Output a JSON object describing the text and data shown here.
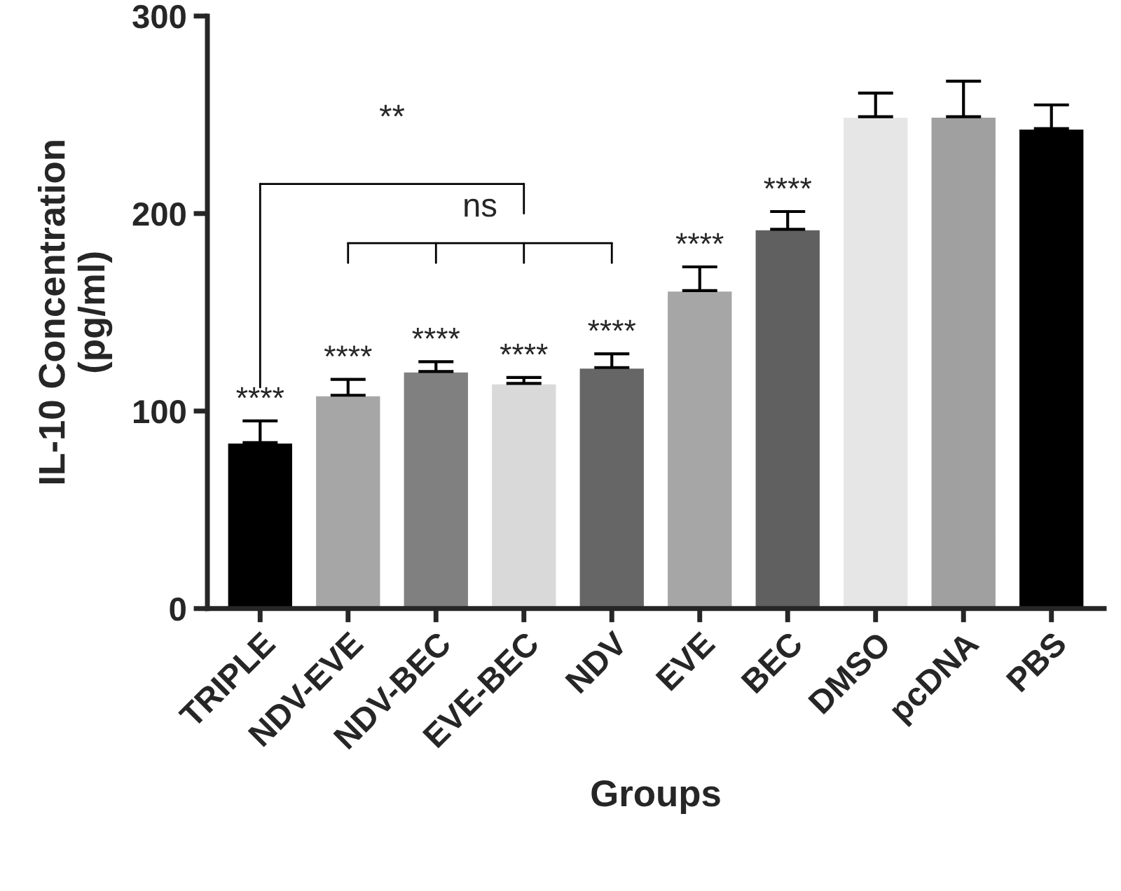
{
  "chart_data": {
    "type": "bar",
    "xlabel": "Groups",
    "ylabel": "IL-10 Concentration\n(pg/ml)",
    "categories": [
      "TRIPLE",
      "NDV-EVE",
      "NDV-BEC",
      "EVE-BEC",
      "NDV",
      "EVE",
      "BEC",
      "DMSO",
      "pcDNA",
      "PBS"
    ],
    "values": [
      84,
      108,
      120,
      114,
      122,
      161,
      192,
      249,
      249,
      243
    ],
    "colors": [
      "#000000",
      "#a6a6a6",
      "#808080",
      "#d9d9d9",
      "#666666",
      "#a6a6a6",
      "#606060",
      "#e6e6e6",
      "#a0a0a0",
      "#000000"
    ],
    "errors": [
      [
        84,
        95
      ],
      [
        108,
        116
      ],
      [
        120,
        125
      ],
      [
        114,
        117
      ],
      [
        122,
        129
      ],
      [
        161,
        173
      ],
      [
        192,
        201
      ],
      [
        249,
        261
      ],
      [
        249,
        267
      ],
      [
        243,
        255
      ]
    ],
    "ylim": [
      0,
      300
    ],
    "yticks": [
      0,
      100,
      200,
      300
    ],
    "grid": false,
    "legend": false,
    "annotations": [
      {
        "text": "****",
        "x": "TRIPLE",
        "y": 95
      },
      {
        "text": "****",
        "x": "NDV-EVE",
        "y": 116
      },
      {
        "text": "****",
        "x": "NDV-BEC",
        "y": 125
      },
      {
        "text": "****",
        "x": "EVE-BEC",
        "y": 117
      },
      {
        "text": "****",
        "x": "NDV",
        "y": 129
      },
      {
        "text": "****",
        "x": "EVE",
        "y": 173
      },
      {
        "text": "****",
        "x": "BEC",
        "y": 201
      },
      "**",
      "ns"
    ]
  }
}
